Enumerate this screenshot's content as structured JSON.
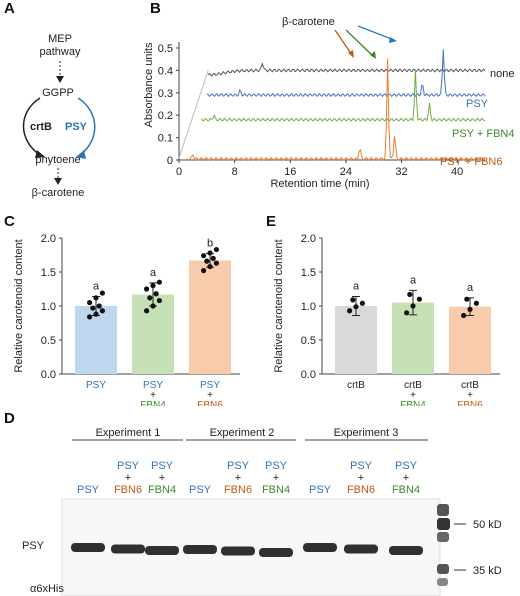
{
  "panels": {
    "A": {
      "letter": "A",
      "mep": [
        "MEP",
        "pathway"
      ],
      "ggpp": "GGPP",
      "crtb": "crtB",
      "psy": "PSY",
      "phytoene": "phytoene",
      "product": "β-carotene"
    },
    "B": {
      "letter": "B",
      "annotation": "β-carotene",
      "ylabel": "Absorbance units",
      "xlabel": "Retention time (min)",
      "yticks": [
        "0",
        "0.1",
        "0.2",
        "0.3",
        "0.4",
        "0.5"
      ],
      "xticks": [
        "0",
        "8",
        "16",
        "24",
        "32",
        "40"
      ],
      "traces": [
        "none",
        "PSY",
        "PSY + FBN4",
        "PSY + FBN6"
      ]
    },
    "C": {
      "letter": "C",
      "ylabel": "Relative carotenoid content",
      "letters": [
        "a",
        "a",
        "b"
      ]
    },
    "E": {
      "letter": "E",
      "ylabel": "Relative carotenoid content",
      "letters": [
        "a",
        "a",
        "a"
      ]
    },
    "D": {
      "letter": "D",
      "experiments": [
        "Experiment 1",
        "Experiment 2",
        "Experiment 3"
      ],
      "psy_label": "PSY",
      "plus": "+",
      "fbn6": "FBN6",
      "fbn4": "FBN4",
      "row_label": "PSY",
      "antibody": "α6xHis",
      "marker_high": "50 kD",
      "marker_low": "35 kD"
    }
  },
  "chart_data": [
    {
      "type": "bar",
      "panel": "C",
      "categories": [
        "PSY",
        "PSY + FBN4",
        "PSY + FBN6"
      ],
      "values": [
        1.0,
        1.17,
        1.67
      ],
      "errors": [
        0.14,
        0.17,
        0.1
      ],
      "colors": [
        "#bdd7ee",
        "#c5e0b4",
        "#f8cbad"
      ],
      "ylabel": "Relative carotenoid content",
      "ylim": [
        0,
        2
      ],
      "yticks": [
        "0.0",
        "0.5",
        "1.0",
        "1.5",
        "2.0"
      ],
      "significance": [
        "a",
        "a",
        "b"
      ],
      "points": [
        [
          0.84,
          0.88,
          0.93,
          0.97,
          1.0,
          1.05,
          1.12,
          1.19
        ],
        [
          0.93,
          1.0,
          1.08,
          1.12,
          1.18,
          1.25,
          1.3,
          1.35
        ],
        [
          1.52,
          1.58,
          1.63,
          1.66,
          1.7,
          1.74,
          1.78,
          1.83
        ]
      ]
    },
    {
      "type": "bar",
      "panel": "E",
      "categories": [
        "crtB",
        "crtB + FBN4",
        "crtB + FBN6"
      ],
      "values": [
        1.0,
        1.05,
        0.99
      ],
      "errors": [
        0.14,
        0.18,
        0.13
      ],
      "colors": [
        "#d9d9d9",
        "#c5e0b4",
        "#f8cbad"
      ],
      "ylabel": "Relative carotenoid content",
      "ylim": [
        0,
        2
      ],
      "yticks": [
        "0.0",
        "0.5",
        "1.0",
        "1.5",
        "2.0"
      ],
      "significance": [
        "a",
        "a",
        "a"
      ],
      "points": [
        [
          0.93,
          0.99,
          1.04,
          1.09
        ],
        [
          0.9,
          1.0,
          1.1,
          1.17
        ],
        [
          0.86,
          0.95,
          1.04,
          1.1
        ]
      ]
    },
    {
      "type": "line",
      "panel": "B",
      "xlabel": "Retention time (min)",
      "ylabel": "Absorbance units",
      "xlim": [
        0,
        44
      ],
      "ylim": [
        0,
        0.5
      ],
      "series": [
        {
          "name": "none",
          "color": "#555555",
          "baseline": 0.4,
          "peaks": [
            [
              12,
              0.035
            ],
            [
              46,
              0.03
            ]
          ]
        },
        {
          "name": "PSY",
          "color": "#4472c4",
          "baseline": 0.29,
          "peaks": [
            [
              8.8,
              0.02
            ],
            [
              35,
              0.05
            ],
            [
              38,
              0.21
            ]
          ]
        },
        {
          "name": "PSY + FBN4",
          "color": "#70ad47",
          "baseline": 0.18,
          "peaks": [
            [
              5,
              0.02
            ],
            [
              34,
              0.22
            ],
            [
              36,
              0.07
            ]
          ]
        },
        {
          "name": "PSY + FBN6",
          "color": "#ed7d31",
          "baseline": 0.005,
          "peaks": [
            [
              2,
              0.02
            ],
            [
              26,
              0.05
            ],
            [
              30,
              0.45
            ],
            [
              31,
              0.11
            ]
          ]
        }
      ]
    }
  ]
}
